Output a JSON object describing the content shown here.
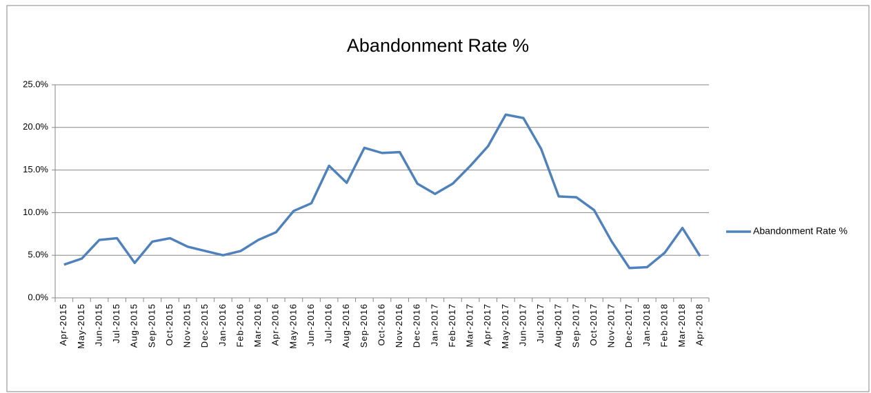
{
  "chart_data": {
    "type": "line",
    "title": "Abandonment Rate %",
    "categories": [
      "Apr-2015",
      "May-2015",
      "Jun-2015",
      "Jul-2015",
      "Aug-2015",
      "Sep-2015",
      "Oct-2015",
      "Nov-2015",
      "Dec-2015",
      "Jan-2016",
      "Feb-2016",
      "Mar-2016",
      "Apr-2016",
      "May-2016",
      "Jun-2016",
      "Jul-2016",
      "Aug-2016",
      "Sep-2016",
      "Oct-2016",
      "Nov-2016",
      "Dec-2016",
      "Jan-2017",
      "Feb-2017",
      "Mar-2017",
      "Apr-2017",
      "May-2017",
      "Jun-2017",
      "Jul-2017",
      "Aug-2017",
      "Sep-2017",
      "Oct-2017",
      "Nov-2017",
      "Dec-2017",
      "Jan-2018",
      "Feb-2018",
      "Mar-2018",
      "Apr-2018"
    ],
    "series": [
      {
        "name": "Abandonment Rate %",
        "color": "#4f81bd",
        "values": [
          3.9,
          4.6,
          6.8,
          7.0,
          4.1,
          6.6,
          7.0,
          6.0,
          5.5,
          5.0,
          5.5,
          6.8,
          7.7,
          10.2,
          11.1,
          15.5,
          13.5,
          17.6,
          17.0,
          17.1,
          13.4,
          12.2,
          13.4,
          15.5,
          17.8,
          21.5,
          21.1,
          17.5,
          11.9,
          11.8,
          10.3,
          6.6,
          3.5,
          3.6,
          5.3,
          8.2,
          4.9
        ]
      }
    ],
    "ylim": [
      0,
      25
    ],
    "yticks": [
      {
        "value": 0,
        "label": "0.0%"
      },
      {
        "value": 5,
        "label": "5.0%"
      },
      {
        "value": 10,
        "label": "10.0%"
      },
      {
        "value": 15,
        "label": "15.0%"
      },
      {
        "value": 20,
        "label": "20.0%"
      },
      {
        "value": 25,
        "label": "25.0%"
      }
    ],
    "grid": true,
    "legend": "right"
  }
}
